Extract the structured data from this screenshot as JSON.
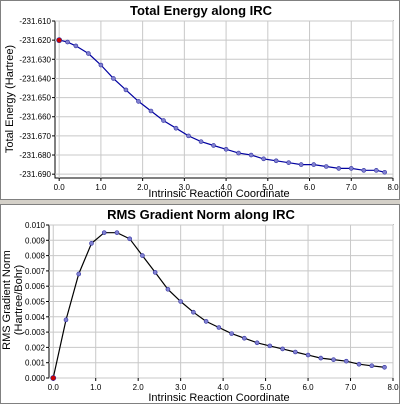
{
  "chart_data": [
    {
      "type": "line",
      "title": "Total Energy along IRC",
      "xlabel": "Intrinsic Reaction Coordinate",
      "ylabel": [
        "Total Energy (Hartree)"
      ],
      "xlim": [
        -0.1,
        8.0
      ],
      "ylim": [
        -231.692,
        -231.61
      ],
      "x_ticks": [
        "0.0",
        "1.0",
        "2.0",
        "3.0",
        "4.0",
        "5.0",
        "6.0",
        "7.0",
        "8.0"
      ],
      "y_ticks": [
        "-231.610",
        "-231.620",
        "-231.630",
        "-231.640",
        "-231.650",
        "-231.660",
        "-231.670",
        "-231.680",
        "-231.690"
      ],
      "grid": true,
      "line_color": "#0000a0",
      "marker_color": "#8080d0",
      "highlight_color": "#cc0000",
      "series": [
        {
          "x": [
            0.0,
            0.2,
            0.4,
            0.7,
            1.0,
            1.3,
            1.6,
            1.9,
            2.2,
            2.5,
            2.8,
            3.1,
            3.4,
            3.7,
            4.0,
            4.3,
            4.6,
            4.9,
            5.2,
            5.5,
            5.8,
            6.1,
            6.4,
            6.7,
            7.0,
            7.3,
            7.6,
            7.8
          ],
          "y": [
            -231.62,
            -231.621,
            -231.623,
            -231.627,
            -231.633,
            -231.64,
            -231.646,
            -231.652,
            -231.657,
            -231.662,
            -231.666,
            -231.67,
            -231.673,
            -231.675,
            -231.677,
            -231.679,
            -231.68,
            -231.682,
            -231.683,
            -231.684,
            -231.685,
            -231.685,
            -231.686,
            -231.687,
            -231.687,
            -231.688,
            -231.688,
            -231.689
          ]
        }
      ]
    },
    {
      "type": "line",
      "title": "RMS Gradient Norm along IRC",
      "xlabel": "Intrinsic Reaction Coordinate",
      "ylabel": [
        "RMS Gradient Norm",
        "(Hartree/Bohr)"
      ],
      "xlim": [
        -0.1,
        8.0
      ],
      "ylim": [
        0.0,
        0.01
      ],
      "x_ticks": [
        "0.0",
        "1.0",
        "2.0",
        "3.0",
        "4.0",
        "5.0",
        "6.0",
        "7.0",
        "8.0"
      ],
      "y_ticks": [
        "0.010",
        "0.009",
        "0.008",
        "0.007",
        "0.006",
        "0.005",
        "0.004",
        "0.003",
        "0.002",
        "0.001",
        "0.000"
      ],
      "grid": true,
      "line_color": "#000000",
      "marker_color": "#8080d0",
      "highlight_color": "#cc0000",
      "series": [
        {
          "x": [
            0.0,
            0.3,
            0.6,
            0.9,
            1.2,
            1.5,
            1.8,
            2.1,
            2.4,
            2.7,
            3.0,
            3.3,
            3.6,
            3.9,
            4.2,
            4.5,
            4.8,
            5.1,
            5.4,
            5.7,
            6.0,
            6.3,
            6.6,
            6.9,
            7.2,
            7.5,
            7.8
          ],
          "y": [
            0.0,
            0.0038,
            0.0068,
            0.0088,
            0.0095,
            0.0095,
            0.0091,
            0.008,
            0.0069,
            0.0058,
            0.005,
            0.0043,
            0.0037,
            0.0033,
            0.0029,
            0.0026,
            0.0023,
            0.0021,
            0.0019,
            0.0017,
            0.0015,
            0.0013,
            0.0012,
            0.0011,
            0.0009,
            0.0008,
            0.0007
          ]
        }
      ]
    }
  ]
}
